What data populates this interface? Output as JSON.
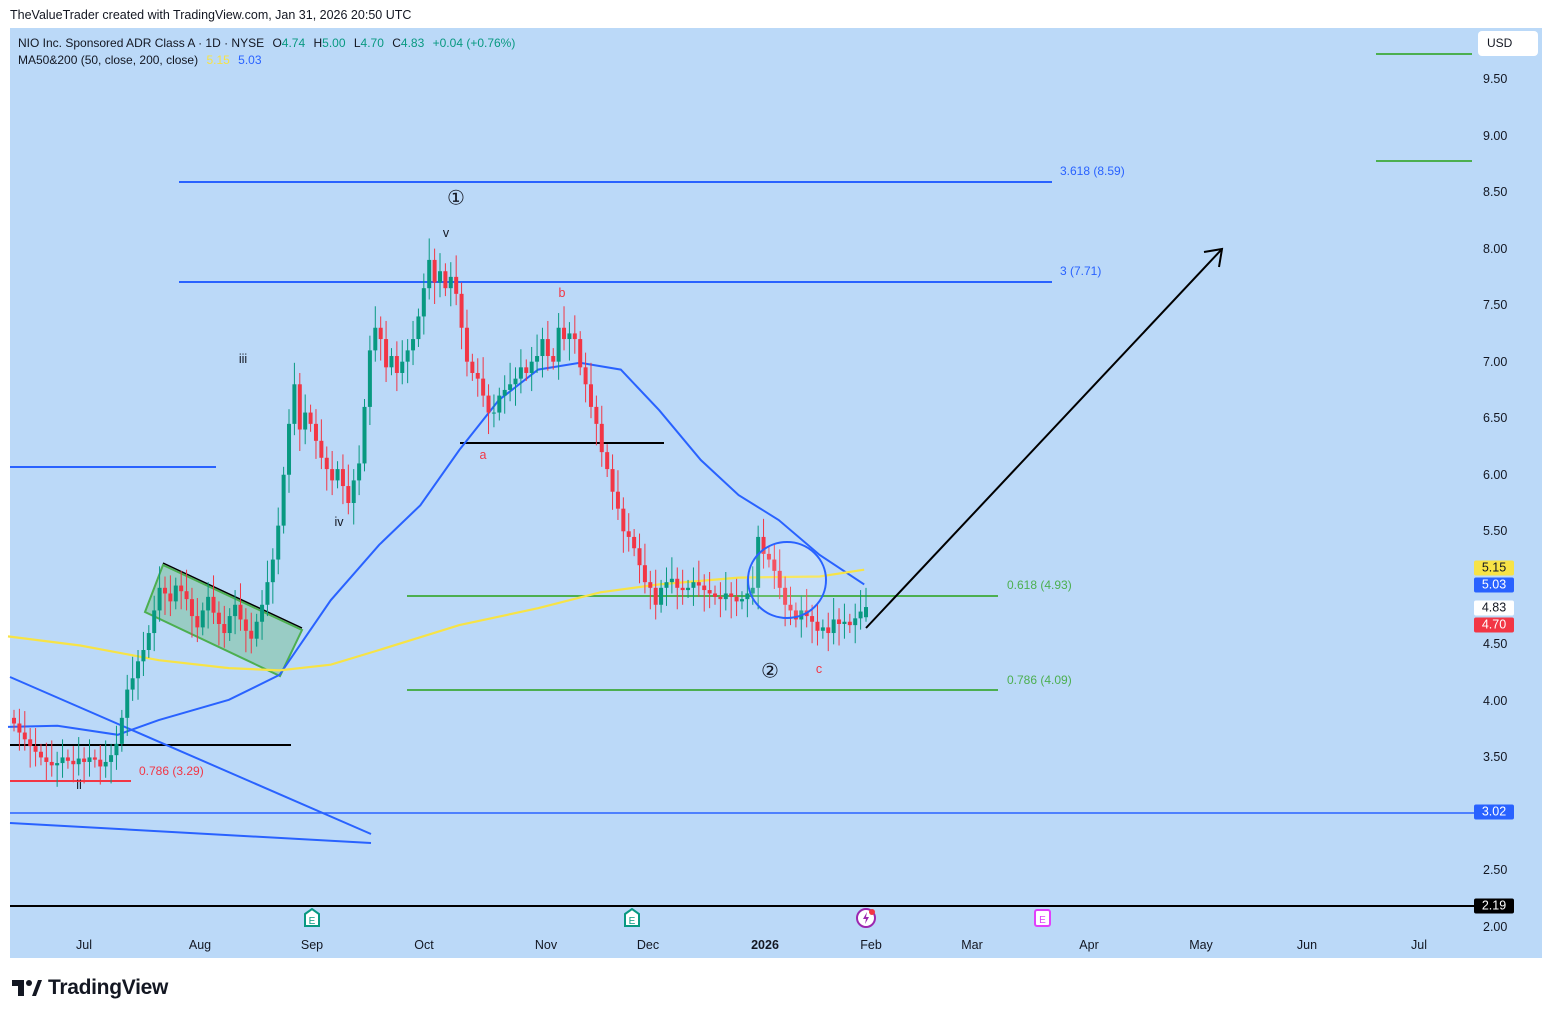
{
  "attribution": "TheValueTrader created with TradingView.com, Jan 31, 2026 20:50 UTC",
  "legend": {
    "symbol": "NIO Inc. Sponsored ADR Class A · 1D · NYSE",
    "open_label": "O",
    "open": "4.74",
    "high_label": "H",
    "high": "5.00",
    "low_label": "L",
    "low": "4.70",
    "close_label": "C",
    "close": "4.83",
    "change": "+0.04 (+0.76%)",
    "indicator": "MA50&200 (50, close, 200, close)",
    "ma200_value": "5.15",
    "ma50_value": "5.03"
  },
  "currency": "USD",
  "brand": "TradingView",
  "colors": {
    "background": "#bbd9f8",
    "up": "#089981",
    "down": "#f23645",
    "ma50": "#2962ff",
    "ma200": "#f7e346",
    "fib": "#4caf50"
  },
  "chart_data": {
    "type": "candlestick",
    "title": "NIO Inc. Sponsored ADR Class A · 1D · NYSE",
    "ylim": [
      2.0,
      9.75
    ],
    "y_ticks": [
      "9.50",
      "9.00",
      "8.50",
      "8.00",
      "7.50",
      "7.00",
      "6.50",
      "6.00",
      "5.50",
      "5.00",
      "4.50",
      "4.00",
      "3.50",
      "3.00",
      "2.50",
      "2.00"
    ],
    "x_ticks": [
      {
        "label": "Jul",
        "date": "2025-07-01"
      },
      {
        "label": "Aug",
        "date": "2025-08-01"
      },
      {
        "label": "Sep",
        "date": "2025-09-01"
      },
      {
        "label": "Oct",
        "date": "2025-10-01"
      },
      {
        "label": "Nov",
        "date": "2025-11-01"
      },
      {
        "label": "Dec",
        "date": "2025-12-01"
      },
      {
        "label": "2026",
        "date": "2026-01-01",
        "bold": true
      },
      {
        "label": "Feb",
        "date": "2026-02-01"
      },
      {
        "label": "Mar",
        "date": "2026-03-01"
      },
      {
        "label": "Apr",
        "date": "2026-04-01"
      },
      {
        "label": "May",
        "date": "2026-05-01"
      },
      {
        "label": "Jun",
        "date": "2026-06-01"
      },
      {
        "label": "Jul",
        "date": "2026-07-01"
      }
    ],
    "closes": [
      3.8,
      3.72,
      3.66,
      3.6,
      3.55,
      3.5,
      3.46,
      3.43,
      3.45,
      3.5,
      3.47,
      3.44,
      3.49,
      3.46,
      3.5,
      3.48,
      3.42,
      3.46,
      3.52,
      3.62,
      3.85,
      4.1,
      4.2,
      4.35,
      4.45,
      4.6,
      4.8,
      5.0,
      4.95,
      4.88,
      5.02,
      4.97,
      4.9,
      4.75,
      4.65,
      4.8,
      4.92,
      4.78,
      4.68,
      4.6,
      4.75,
      4.85,
      4.72,
      4.62,
      4.55,
      4.7,
      4.85,
      5.05,
      5.25,
      5.55,
      6.0,
      6.45,
      6.8,
      6.4,
      6.55,
      6.45,
      6.3,
      6.15,
      6.05,
      5.95,
      6.05,
      5.9,
      5.75,
      5.95,
      6.1,
      6.6,
      7.1,
      7.3,
      7.2,
      6.95,
      7.05,
      6.9,
      7.0,
      7.1,
      7.2,
      7.4,
      7.65,
      7.9,
      7.7,
      7.8,
      7.65,
      7.75,
      7.6,
      7.3,
      7.0,
      6.9,
      6.85,
      6.7,
      6.55,
      6.55,
      6.7,
      6.75,
      6.8,
      6.85,
      6.95,
      6.9,
      7.0,
      7.05,
      7.2,
      7.05,
      7.0,
      7.3,
      7.2,
      7.25,
      7.2,
      6.95,
      6.8,
      6.6,
      6.45,
      6.2,
      6.05,
      5.85,
      5.7,
      5.5,
      5.45,
      5.35,
      5.2,
      5.05,
      5.0,
      4.85,
      5.0,
      5.05,
      5.08,
      5.0,
      4.98,
      5.0,
      5.05,
      5.02,
      4.98,
      4.95,
      4.92,
      4.9,
      4.95,
      4.92,
      4.88,
      4.9,
      4.95,
      5.0,
      5.45,
      5.3,
      5.25,
      5.15,
      5.0,
      4.85,
      4.8,
      4.72,
      4.8,
      4.75,
      4.7,
      4.62,
      4.65,
      4.6,
      4.72,
      4.68,
      4.7,
      4.67,
      4.73,
      4.79,
      4.83
    ],
    "last_candle": {
      "open": 4.74,
      "high": 5.0,
      "low": 4.7,
      "close": 4.83
    },
    "series": [
      {
        "name": "MA50",
        "points": [
          [
            "2025-06-11",
            3.77
          ],
          [
            "2025-06-24",
            3.78
          ],
          [
            "2025-07-10",
            3.7
          ],
          [
            "2025-07-21",
            3.83
          ],
          [
            "2025-08-09",
            4.01
          ],
          [
            "2025-08-23",
            4.23
          ],
          [
            "2025-09-06",
            4.89
          ],
          [
            "2025-09-19",
            5.38
          ],
          [
            "2025-09-30",
            5.73
          ],
          [
            "2025-10-10",
            6.22
          ],
          [
            "2025-10-20",
            6.66
          ],
          [
            "2025-10-30",
            6.93
          ],
          [
            "2025-11-11",
            6.99
          ],
          [
            "2025-11-23",
            6.93
          ],
          [
            "2025-12-04",
            6.57
          ],
          [
            "2025-12-15",
            6.13
          ],
          [
            "2025-12-25",
            5.82
          ],
          [
            "2026-01-05",
            5.6
          ],
          [
            "2026-01-17",
            5.29
          ],
          [
            "2026-01-30",
            5.03
          ]
        ]
      },
      {
        "name": "MA200",
        "points": [
          [
            "2025-06-11",
            4.57
          ],
          [
            "2025-06-30",
            4.49
          ],
          [
            "2025-07-21",
            4.36
          ],
          [
            "2025-08-09",
            4.29
          ],
          [
            "2025-08-23",
            4.27
          ],
          [
            "2025-09-06",
            4.32
          ],
          [
            "2025-09-19",
            4.45
          ],
          [
            "2025-10-10",
            4.67
          ],
          [
            "2025-10-30",
            4.82
          ],
          [
            "2025-11-17",
            4.96
          ],
          [
            "2025-12-04",
            5.03
          ],
          [
            "2025-12-25",
            5.09
          ],
          [
            "2026-01-17",
            5.1
          ],
          [
            "2026-01-30",
            5.16
          ]
        ]
      }
    ],
    "levels": [
      {
        "label": "3.618 (8.59)",
        "price": 8.59,
        "color": "#2962ff"
      },
      {
        "label": "3 (7.71)",
        "price": 7.71,
        "color": "#2962ff"
      },
      {
        "label": "0.618 (4.93)",
        "price": 4.93,
        "color": "#4caf50"
      },
      {
        "label": "0.786 (4.09)",
        "price": 4.09,
        "color": "#4caf50"
      },
      {
        "label": "0.786 (3.29)",
        "price": 3.29,
        "color": "#f23645"
      }
    ],
    "price_badges": [
      {
        "value": "5.15",
        "bg": "#f7e346",
        "fg": "#131722"
      },
      {
        "value": "5.03",
        "bg": "#2962ff",
        "fg": "#ffffff"
      },
      {
        "value": "4.83",
        "bg": "#ffffff",
        "fg": "#131722"
      },
      {
        "value": "4.70",
        "bg": "#f23645",
        "fg": "#ffffff"
      },
      {
        "value": "3.02",
        "bg": "#2962ff",
        "fg": "#ffffff"
      },
      {
        "value": "2.19",
        "bg": "#000000",
        "fg": "#ffffff"
      }
    ],
    "wave_labels": {
      "wave1": "①",
      "wave2": "②",
      "i_v": "v",
      "i_iii": "iii",
      "i_iv": "iv",
      "i_ii": "ii",
      "a": "a",
      "b": "b",
      "c": "c"
    },
    "events": [
      "earnings-icon",
      "earnings-icon",
      "dividend-flash-icon",
      "upcoming-earnings-icon"
    ]
  }
}
